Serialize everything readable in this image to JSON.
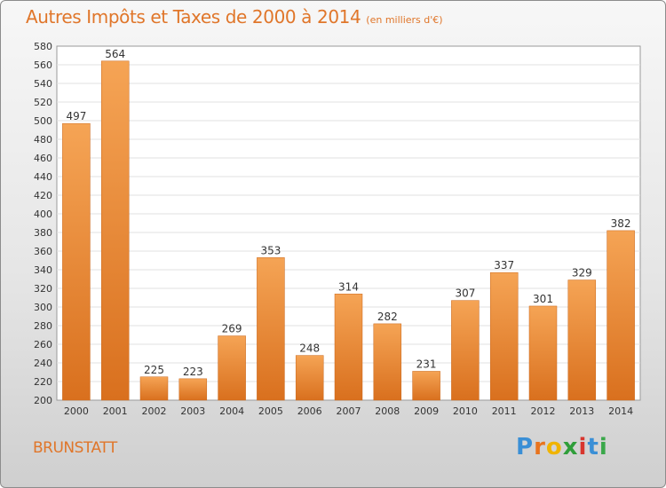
{
  "header": {
    "title": "Autres Impôts et Taxes de 2000 à 2014",
    "subtitle": "(en milliers d'€)"
  },
  "footer": {
    "place": "BRUNSTATT",
    "logo": "Proxiti",
    "logo_colors": [
      "#3a8fd6",
      "#e8741e",
      "#f0b400",
      "#2f9e3a",
      "#d8362e",
      "#3a8fd6",
      "#3aa84a"
    ]
  },
  "colors": {
    "accent": "#e0762a",
    "bar_top": "#f5a455",
    "bar_bottom": "#d9701e"
  },
  "chart_data": {
    "type": "bar",
    "categories": [
      "2000",
      "2001",
      "2002",
      "2003",
      "2004",
      "2005",
      "2006",
      "2007",
      "2008",
      "2009",
      "2010",
      "2011",
      "2012",
      "2013",
      "2014"
    ],
    "values": [
      497,
      564,
      225,
      223,
      269,
      353,
      248,
      314,
      282,
      231,
      307,
      337,
      301,
      329,
      382
    ],
    "ylim": [
      200,
      580
    ],
    "ytick_step": 20,
    "grid": true
  }
}
